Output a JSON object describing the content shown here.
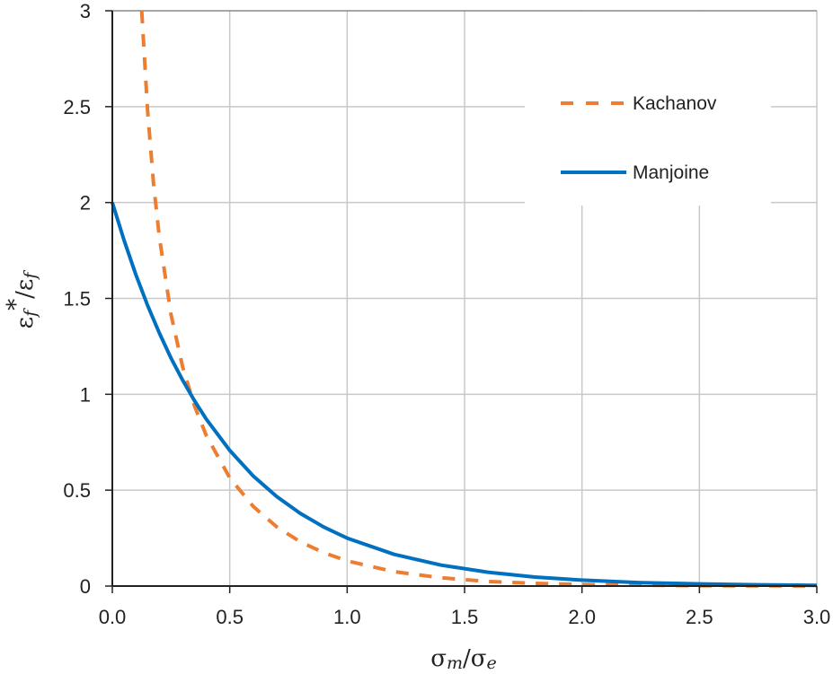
{
  "chart_data": {
    "type": "line",
    "title": "",
    "xlabel": {
      "main": "σ",
      "sub1": "m",
      "sep": "/σ",
      "sub2": "e"
    },
    "ylabel": {
      "a": "ε",
      "sub1": "f",
      "star": "*",
      "sep": "/ε",
      "sub2": "f"
    },
    "xlim": [
      0,
      3
    ],
    "ylim": [
      0,
      3
    ],
    "xticks": [
      "0.0",
      "0.5",
      "1.0",
      "1.5",
      "2.0",
      "2.5",
      "3.0"
    ],
    "yticks": [
      "0",
      "0.5",
      "1",
      "1.5",
      "2",
      "2.5",
      "3"
    ],
    "grid": true,
    "legend_position": "top-right",
    "series": [
      {
        "name": "Kachanov",
        "style": "dashed",
        "color": "#ED7D31",
        "x": [
          0.125,
          0.15,
          0.175,
          0.2,
          0.25,
          0.3,
          0.35,
          0.4,
          0.5,
          0.6,
          0.7,
          0.8,
          0.9,
          1.0,
          1.2,
          1.4,
          1.6,
          1.8,
          2.0,
          2.5,
          3.0
        ],
        "y": [
          3.0,
          2.483,
          2.106,
          1.821,
          1.416,
          1.14,
          0.939,
          0.786,
          0.564,
          0.415,
          0.309,
          0.231,
          0.174,
          0.131,
          0.075,
          0.043,
          0.024,
          0.014,
          0.008,
          0.002,
          0.0005
        ]
      },
      {
        "name": "Manjoine",
        "style": "solid",
        "color": "#0070C0",
        "x": [
          0,
          0.05,
          0.1,
          0.15,
          0.2,
          0.25,
          0.3,
          0.35,
          0.4,
          0.5,
          0.6,
          0.7,
          0.8,
          0.9,
          1.0,
          1.2,
          1.4,
          1.6,
          1.8,
          2.0,
          2.25,
          2.5,
          2.75,
          3.0
        ],
        "y": [
          2.0,
          1.803,
          1.625,
          1.464,
          1.32,
          1.189,
          1.072,
          0.966,
          0.871,
          0.707,
          0.574,
          0.467,
          0.379,
          0.308,
          0.25,
          0.165,
          0.109,
          0.072,
          0.047,
          0.031,
          0.018,
          0.011,
          0.0066,
          0.0039
        ]
      }
    ]
  }
}
